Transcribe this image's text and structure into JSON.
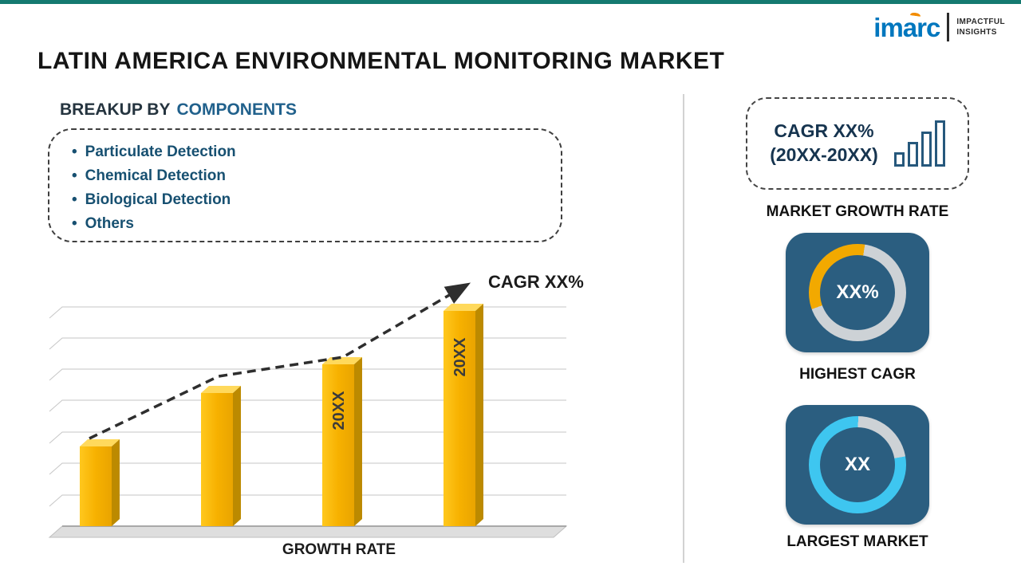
{
  "header": {
    "title": "LATIN AMERICA ENVIRONMENTAL MONITORING MARKET",
    "logo": {
      "brand": "imarc",
      "tagline_line1": "IMPACTFUL",
      "tagline_line2": "INSIGHTS"
    }
  },
  "breakup": {
    "heading_prefix": "BREAKUP BY",
    "heading_highlight": "COMPONENTS",
    "items": [
      "Particulate Detection",
      "Chemical Detection",
      "Biological Detection",
      "Others"
    ]
  },
  "sidebar": {
    "cagr_box": {
      "line1": "CAGR XX%",
      "line2": "(20XX-20XX)"
    },
    "market_growth_rate_label": "MARKET GROWTH RATE"
  },
  "colors": {
    "bar_gold": "#F5B500",
    "card_blue": "#2B5E80",
    "donut_yellow": "#F2A900",
    "donut_cyan": "#3EC6F0",
    "donut_gray": "#CDD2D6",
    "accent_teal": "#147A70",
    "heading_blue": "#21618C"
  },
  "chart_data": [
    {
      "type": "bar",
      "title": "GROWTH RATE",
      "xlabel": "GROWTH RATE",
      "annotation": "CAGR XX%",
      "categories": [
        "",
        "",
        "20XX",
        "20XX"
      ],
      "values": [
        37,
        62,
        75,
        100
      ],
      "ylim": [
        0,
        100
      ],
      "grid": true,
      "trend": "rising dashed arrow",
      "bar_color": "#F5B500"
    },
    {
      "type": "pie",
      "subtype": "donut",
      "caption": "HIGHEST CAGR",
      "center_label": "XX%",
      "start_deg": 250,
      "slices": [
        {
          "name": "highlighted-share",
          "value": 33,
          "color": "#F2A900"
        },
        {
          "name": "remainder",
          "value": 67,
          "color": "#CDD2D6"
        }
      ]
    },
    {
      "type": "pie",
      "subtype": "donut",
      "caption": "LARGEST MARKET",
      "center_label": "XX",
      "start_deg": 80,
      "slices": [
        {
          "name": "highlighted-share",
          "value": 78,
          "color": "#3EC6F0"
        },
        {
          "name": "remainder",
          "value": 22,
          "color": "#CDD2D6"
        }
      ]
    }
  ]
}
